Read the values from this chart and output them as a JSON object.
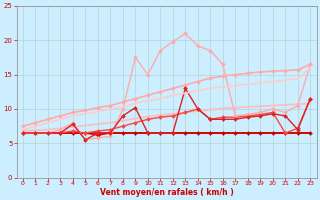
{
  "bg_color": "#cceeff",
  "grid_color": "#aacccc",
  "xlabel": "Vent moyen/en rafales ( km/h )",
  "xlabel_color": "#cc0000",
  "xlim": [
    -0.5,
    23.5
  ],
  "ylim": [
    0,
    25
  ],
  "yticks": [
    0,
    5,
    10,
    15,
    20,
    25
  ],
  "xticks": [
    0,
    1,
    2,
    3,
    4,
    5,
    6,
    7,
    8,
    9,
    10,
    11,
    12,
    13,
    14,
    15,
    16,
    17,
    18,
    19,
    20,
    21,
    22,
    23
  ],
  "series": [
    {
      "x": [
        0,
        1,
        2,
        3,
        4,
        5,
        6,
        7,
        8,
        9,
        10,
        11,
        12,
        13,
        14,
        15,
        16,
        17,
        18,
        19,
        20,
        21,
        22,
        23
      ],
      "y": [
        6.5,
        6.5,
        6.5,
        6.5,
        6.5,
        6.5,
        6.5,
        6.5,
        6.5,
        6.5,
        6.5,
        6.5,
        6.5,
        6.5,
        6.5,
        6.5,
        6.5,
        6.5,
        6.5,
        6.5,
        6.5,
        6.5,
        6.5,
        6.5
      ],
      "color": "#cc0000",
      "lw": 1.2,
      "marker": null
    },
    {
      "x": [
        0,
        1,
        2,
        3,
        4,
        5,
        6,
        7,
        8,
        9,
        10,
        11,
        12,
        13,
        14,
        15,
        16,
        17,
        18,
        19,
        20,
        21,
        22,
        23
      ],
      "y": [
        6.8,
        6.9,
        7.0,
        7.2,
        7.4,
        7.6,
        7.8,
        8.0,
        8.3,
        8.6,
        8.9,
        9.1,
        9.3,
        9.5,
        9.7,
        9.9,
        10.1,
        10.2,
        10.3,
        10.4,
        10.5,
        10.6,
        10.7,
        10.8
      ],
      "color": "#ffbbbb",
      "lw": 1.2,
      "marker": null
    },
    {
      "x": [
        0,
        1,
        2,
        3,
        4,
        5,
        6,
        7,
        8,
        9,
        10,
        11,
        12,
        13,
        14,
        15,
        16,
        17,
        18,
        19,
        20,
        21,
        22,
        23
      ],
      "y": [
        7.5,
        8.0,
        8.5,
        9.0,
        9.5,
        9.8,
        10.2,
        10.5,
        11.0,
        11.5,
        12.0,
        12.5,
        13.0,
        13.5,
        14.0,
        14.5,
        14.8,
        15.0,
        15.2,
        15.4,
        15.5,
        15.6,
        15.7,
        16.5
      ],
      "color": "#ffaaaa",
      "lw": 1.2,
      "marker": "D",
      "ms": 2.0
    },
    {
      "x": [
        0,
        1,
        2,
        3,
        4,
        5,
        6,
        7,
        8,
        9,
        10,
        11,
        12,
        13,
        14,
        15,
        16,
        17,
        18,
        19,
        20,
        21,
        22,
        23
      ],
      "y": [
        6.5,
        6.5,
        6.5,
        6.5,
        6.5,
        6.5,
        6.2,
        6.5,
        6.5,
        6.5,
        6.5,
        6.5,
        6.5,
        6.5,
        6.5,
        6.5,
        6.5,
        6.5,
        6.5,
        6.5,
        6.5,
        6.5,
        6.5,
        6.5
      ],
      "color": "#cc0000",
      "lw": 1.0,
      "marker": "D",
      "ms": 2.0
    },
    {
      "x": [
        0,
        1,
        2,
        3,
        4,
        5,
        6,
        7,
        8,
        9,
        10,
        11,
        12,
        13,
        14,
        15,
        16,
        17,
        18,
        19,
        20,
        21,
        22,
        23
      ],
      "y": [
        6.5,
        6.5,
        6.5,
        6.5,
        6.8,
        6.5,
        6.8,
        7.0,
        7.5,
        8.0,
        8.5,
        8.8,
        9.0,
        9.5,
        10.0,
        8.5,
        8.8,
        8.8,
        9.0,
        9.2,
        9.5,
        6.5,
        7.2,
        11.5
      ],
      "color": "#ff4444",
      "lw": 1.0,
      "marker": "D",
      "ms": 2.0
    },
    {
      "x": [
        0,
        1,
        2,
        3,
        4,
        5,
        6,
        7,
        8,
        9,
        10,
        11,
        12,
        13,
        14,
        15,
        16,
        17,
        18,
        19,
        20,
        21,
        22,
        23
      ],
      "y": [
        6.5,
        6.5,
        6.5,
        7.0,
        8.0,
        5.5,
        5.8,
        6.0,
        10.0,
        17.5,
        15.0,
        18.5,
        19.8,
        21.0,
        19.2,
        18.5,
        16.5,
        9.0,
        9.2,
        9.5,
        10.0,
        9.5,
        10.5,
        16.5
      ],
      "color": "#ffaaaa",
      "lw": 1.0,
      "marker": "D",
      "ms": 2.0
    },
    {
      "x": [
        0,
        1,
        2,
        3,
        4,
        5,
        6,
        7,
        8,
        9,
        10,
        11,
        12,
        13,
        14,
        15,
        16,
        17,
        18,
        19,
        20,
        21,
        22,
        23
      ],
      "y": [
        6.5,
        6.5,
        6.5,
        6.5,
        7.8,
        5.5,
        6.5,
        6.5,
        9.0,
        10.2,
        6.5,
        6.5,
        6.5,
        13.0,
        10.0,
        8.5,
        8.5,
        8.5,
        8.8,
        9.0,
        9.3,
        9.0,
        7.0,
        11.5
      ],
      "color": "#dd2222",
      "lw": 1.0,
      "marker": "D",
      "ms": 2.0
    },
    {
      "x": [
        0,
        1,
        2,
        3,
        4,
        5,
        6,
        7,
        8,
        9,
        10,
        11,
        12,
        13,
        14,
        15,
        16,
        17,
        18,
        19,
        20,
        21,
        22,
        23
      ],
      "y": [
        7.0,
        7.5,
        8.0,
        8.5,
        9.0,
        9.3,
        9.6,
        10.0,
        10.3,
        10.8,
        11.2,
        11.5,
        12.0,
        12.3,
        12.7,
        13.0,
        13.2,
        13.4,
        13.6,
        13.8,
        14.0,
        14.2,
        14.4,
        16.0
      ],
      "color": "#ffcccc",
      "lw": 1.2,
      "marker": null
    }
  ]
}
